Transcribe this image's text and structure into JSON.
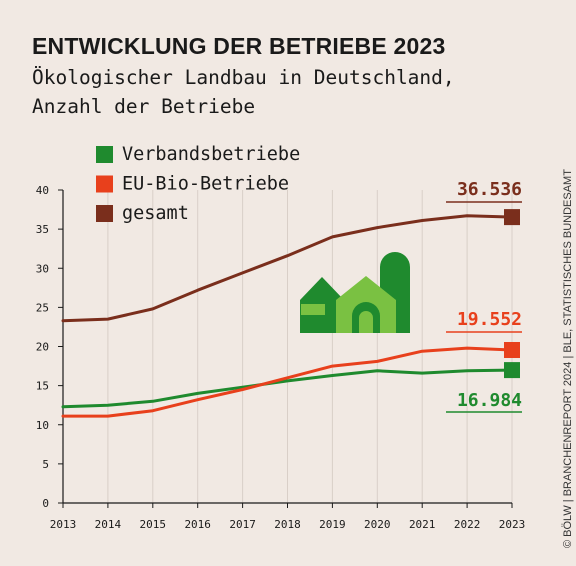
{
  "header": {
    "title": "ENTWICKLUNG DER BETRIEBE 2023",
    "subtitle_line1": "Ökologischer Landbau in Deutschland,",
    "subtitle_line2": "Anzahl der Betriebe"
  },
  "credit": "© BÖLW | BRANCHENREPORT 2024 | BLE, STATISTISCHES BUNDESAMT",
  "icon": "farm-buildings-icon",
  "colors": {
    "verband": "#1f8a2e",
    "eubio": "#e8401c",
    "gesamt": "#7a2e1c",
    "icon_dark": "#1f8a2e",
    "icon_light": "#7ac142"
  },
  "chart_data": {
    "type": "line",
    "x": [
      2013,
      2014,
      2015,
      2016,
      2017,
      2018,
      2019,
      2020,
      2021,
      2022,
      2023
    ],
    "ylim": [
      0,
      40
    ],
    "yticks": [
      0,
      5,
      10,
      15,
      20,
      25,
      30,
      35,
      40
    ],
    "legend_placement": "top-left",
    "series": [
      {
        "name": "Verbandsbetriebe",
        "color": "#1f8a2e",
        "values": [
          12.3,
          12.5,
          13.0,
          14.0,
          14.8,
          15.6,
          16.3,
          16.9,
          16.6,
          16.9,
          16.984
        ],
        "end_label": "16.984"
      },
      {
        "name": "EU-Bio-Betriebe",
        "color": "#e8401c",
        "values": [
          11.1,
          11.1,
          11.8,
          13.2,
          14.5,
          16.0,
          17.5,
          18.1,
          19.4,
          19.8,
          19.552
        ],
        "end_label": "19.552"
      },
      {
        "name": "gesamt",
        "color": "#7a2e1c",
        "values": [
          23.3,
          23.5,
          24.8,
          27.2,
          29.4,
          31.6,
          34.0,
          35.2,
          36.1,
          36.7,
          36.536
        ],
        "end_label": "36.536"
      }
    ]
  }
}
